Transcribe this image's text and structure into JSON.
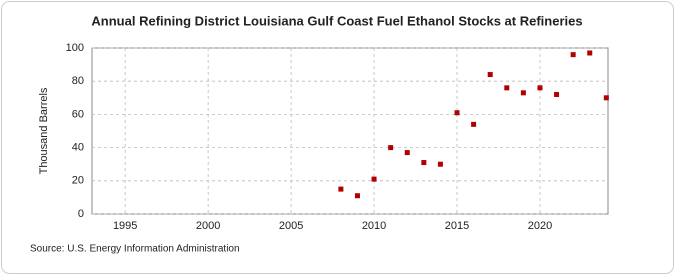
{
  "chart_data": {
    "type": "scatter",
    "title": "Annual Refining District Louisiana Gulf Coast Fuel Ethanol Stocks at Refineries",
    "y_label": "Thousand Barrels",
    "source": "Source: U.S. Energy Information Administration",
    "x": [
      2008,
      2009,
      2010,
      2011,
      2012,
      2013,
      2014,
      2015,
      2016,
      2017,
      2018,
      2019,
      2020,
      2021,
      2022,
      2023,
      2024
    ],
    "series": [
      {
        "color": "#b00000",
        "values": [
          15,
          11,
          21,
          40,
          37,
          31,
          30,
          61,
          54,
          84,
          76,
          73,
          76,
          72,
          96,
          97,
          70
        ]
      }
    ],
    "xlim": [
      1993,
      2024.1
    ],
    "xticks": [
      1995,
      2000,
      2005,
      2010,
      2015,
      2020
    ],
    "ylim": [
      0,
      100
    ],
    "yticks": [
      0,
      20,
      40,
      60,
      80,
      100
    ],
    "grid": true
  }
}
